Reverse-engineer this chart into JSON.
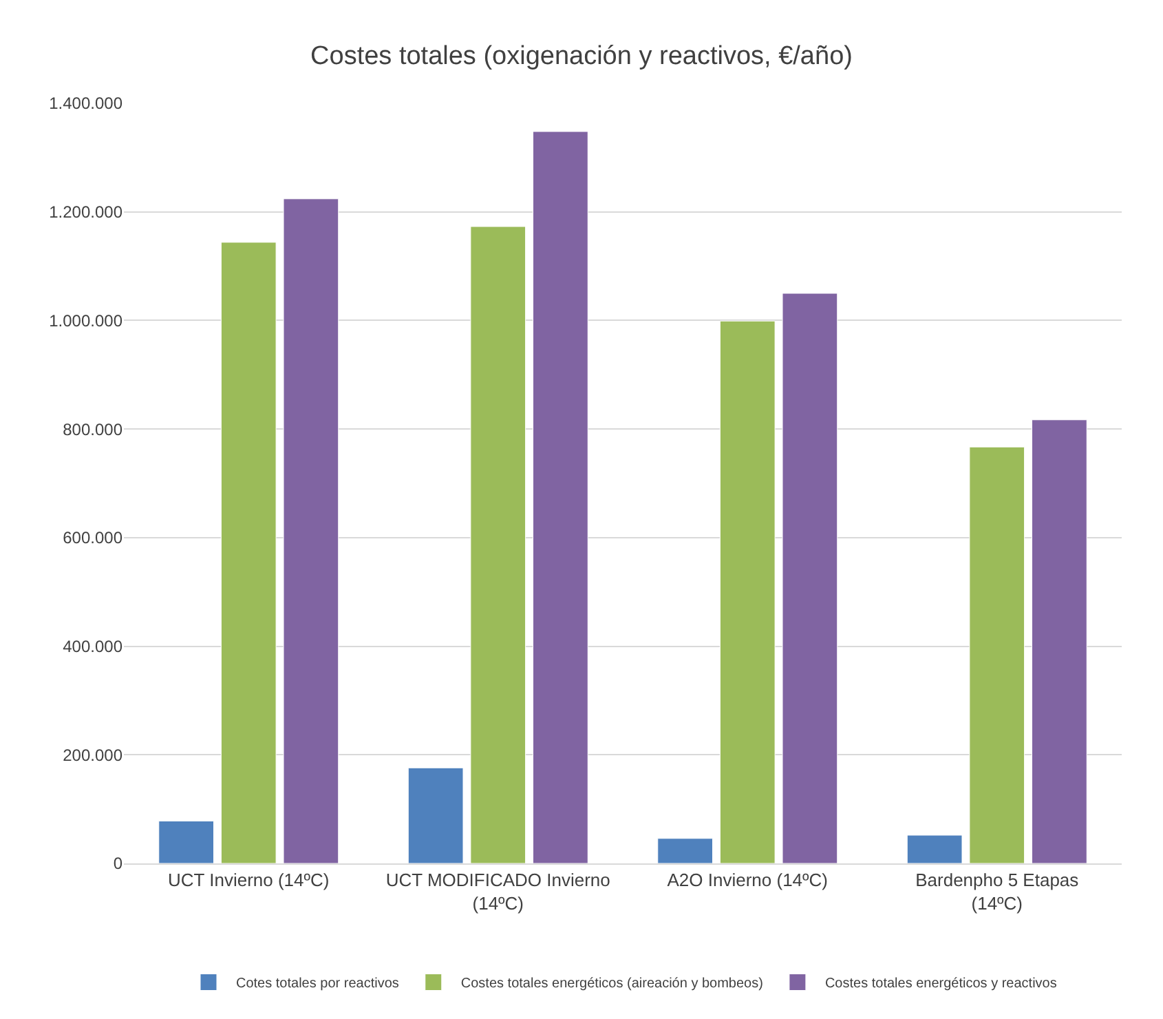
{
  "chart_data": {
    "type": "bar",
    "title": "Costes totales (oxigenación y reactivos, €/año)",
    "categories": [
      "UCT Invierno (14ºC)",
      "UCT MODIFICADO Invierno (14ºC)",
      "A2O Invierno (14ºC)",
      "Bardenpho 5 Etapas (14ºC)"
    ],
    "series": [
      {
        "name": "Cotes totales por reactivos",
        "color": "#4f81bd",
        "values": [
          78000,
          176000,
          46000,
          52000
        ]
      },
      {
        "name": "Costes totales energéticos (aireación y bombeos)",
        "color": "#9bbb59",
        "values": [
          1144000,
          1173000,
          999000,
          767000
        ]
      },
      {
        "name": "Costes totales energéticos y reactivos",
        "color": "#8064a2",
        "values": [
          1224000,
          1348000,
          1050000,
          817000
        ]
      }
    ],
    "ylim": [
      0,
      1400000
    ],
    "yticks": [
      {
        "value": 0,
        "label": "0"
      },
      {
        "value": 200000,
        "label": "200.000"
      },
      {
        "value": 400000,
        "label": "400.000"
      },
      {
        "value": 600000,
        "label": "600.000"
      },
      {
        "value": 800000,
        "label": "800.000"
      },
      {
        "value": 1000000,
        "label": "1.000.000"
      },
      {
        "value": 1200000,
        "label": "1.200.000"
      },
      {
        "value": 1400000,
        "label": "1.400.000"
      }
    ],
    "grid": "y",
    "legend": "bottom"
  }
}
